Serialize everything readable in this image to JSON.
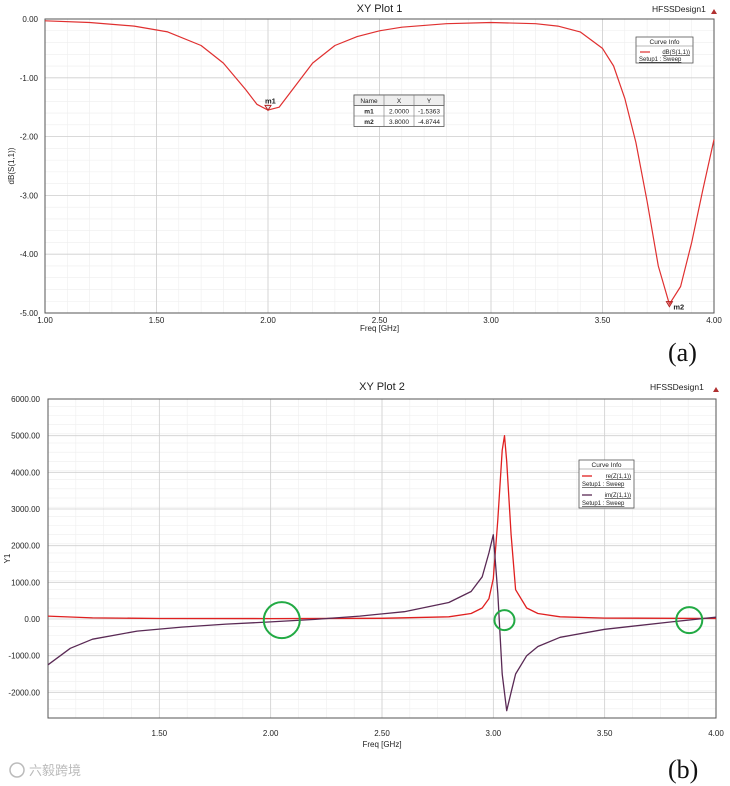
{
  "figure": {
    "caption_a": "(a)",
    "caption_b": "(b)",
    "watermark": "六毅跨境"
  },
  "chart_data": [
    {
      "type": "line",
      "title": "XY Plot 1",
      "design_label": "HFSSDesign1",
      "xlabel": "Freq [GHz]",
      "ylabel": "dB(S(1,1))",
      "xlim": [
        1.0,
        4.0
      ],
      "ylim": [
        -5.0,
        0.0
      ],
      "x_ticks": [
        1.0,
        1.5,
        2.0,
        2.5,
        3.0,
        3.5,
        4.0
      ],
      "x_tick_labels": [
        "1.00",
        "1.50",
        "2.00",
        "2.50",
        "3.00",
        "3.50",
        "4.00"
      ],
      "y_ticks": [
        0.0,
        -1.0,
        -2.0,
        -3.0,
        -4.0,
        -5.0
      ],
      "y_tick_labels": [
        "0.00",
        "-1.00",
        "-2.00",
        "-3.00",
        "-4.00",
        "-5.00"
      ],
      "grid": true,
      "legend_placement": "top-right",
      "legend_title": "Curve Info",
      "series": [
        {
          "name": "dB(S(1,1))",
          "sub": "Setup1 : Sweep",
          "color": "#e03030",
          "x": [
            1.0,
            1.2,
            1.4,
            1.55,
            1.7,
            1.8,
            1.9,
            1.95,
            2.0,
            2.05,
            2.1,
            2.2,
            2.3,
            2.4,
            2.5,
            2.6,
            2.8,
            3.0,
            3.2,
            3.3,
            3.4,
            3.5,
            3.55,
            3.6,
            3.65,
            3.7,
            3.75,
            3.8,
            3.85,
            3.9,
            3.95,
            4.0
          ],
          "y": [
            -0.03,
            -0.06,
            -0.12,
            -0.22,
            -0.45,
            -0.75,
            -1.2,
            -1.45,
            -1.55,
            -1.5,
            -1.25,
            -0.75,
            -0.45,
            -0.3,
            -0.2,
            -0.14,
            -0.08,
            -0.06,
            -0.08,
            -0.12,
            -0.22,
            -0.5,
            -0.8,
            -1.35,
            -2.1,
            -3.1,
            -4.2,
            -4.85,
            -4.55,
            -3.8,
            -2.9,
            -2.05
          ]
        }
      ],
      "markers": [
        {
          "name": "m1",
          "x": 2.0,
          "y": -1.5363
        },
        {
          "name": "m2",
          "x": 3.8,
          "y": -4.8744
        }
      ],
      "marker_table": {
        "headers": [
          "Name",
          "X",
          "Y"
        ],
        "rows": [
          [
            "m1",
            "2.0000",
            "-1.5363"
          ],
          [
            "m2",
            "3.8000",
            "-4.8744"
          ]
        ]
      }
    },
    {
      "type": "line",
      "title": "XY Plot 2",
      "design_label": "HFSSDesign1",
      "xlabel": "Freq [GHz]",
      "ylabel": "Y1",
      "xlim": [
        1.0,
        4.0
      ],
      "ylim": [
        -2700,
        6000
      ],
      "x_ticks": [
        1.5,
        2.0,
        2.5,
        3.0,
        3.5,
        4.0
      ],
      "x_tick_labels": [
        "1.50",
        "2.00",
        "2.50",
        "3.00",
        "3.50",
        "4.00"
      ],
      "y_ticks": [
        6000,
        5000,
        4000,
        3000,
        2000,
        1000,
        0,
        -1000,
        -2000
      ],
      "y_tick_labels": [
        "6000.00",
        "5000.00",
        "4000.00",
        "3000.00",
        "2000.00",
        "1000.00",
        "0.00",
        "-1000.00",
        "-2000.00"
      ],
      "grid": true,
      "legend_placement": "right",
      "legend_title": "Curve Info",
      "series": [
        {
          "name": "re(Z(1,1))",
          "sub": "Setup1 : Sweep",
          "color": "#e02020",
          "x": [
            1.0,
            1.2,
            1.5,
            2.0,
            2.5,
            2.8,
            2.9,
            2.95,
            2.98,
            3.0,
            3.02,
            3.04,
            3.05,
            3.06,
            3.08,
            3.1,
            3.15,
            3.2,
            3.3,
            3.5,
            4.0
          ],
          "y": [
            80,
            30,
            15,
            10,
            20,
            60,
            150,
            300,
            550,
            1100,
            2700,
            4600,
            5000,
            4300,
            2300,
            800,
            300,
            150,
            60,
            25,
            15
          ]
        },
        {
          "name": "im(Z(1,1))",
          "sub": "Setup1 : Sweep",
          "color": "#5a2a55",
          "x": [
            1.0,
            1.1,
            1.2,
            1.4,
            1.6,
            1.8,
            2.0,
            2.2,
            2.4,
            2.6,
            2.8,
            2.9,
            2.95,
            2.98,
            3.0,
            3.02,
            3.04,
            3.06,
            3.08,
            3.1,
            3.15,
            3.2,
            3.3,
            3.5,
            3.8,
            4.0
          ],
          "y": [
            -1250,
            -800,
            -550,
            -330,
            -220,
            -140,
            -80,
            -10,
            80,
            200,
            450,
            750,
            1150,
            1800,
            2300,
            700,
            -1500,
            -2500,
            -2000,
            -1500,
            -1000,
            -750,
            -500,
            -280,
            -80,
            50
          ]
        }
      ],
      "highlight_circles": [
        {
          "x": 2.05,
          "y": -30,
          "size": "large"
        },
        {
          "x": 3.05,
          "y": -30,
          "size": "small"
        },
        {
          "x": 3.88,
          "y": -30,
          "size": "medium"
        }
      ]
    }
  ]
}
